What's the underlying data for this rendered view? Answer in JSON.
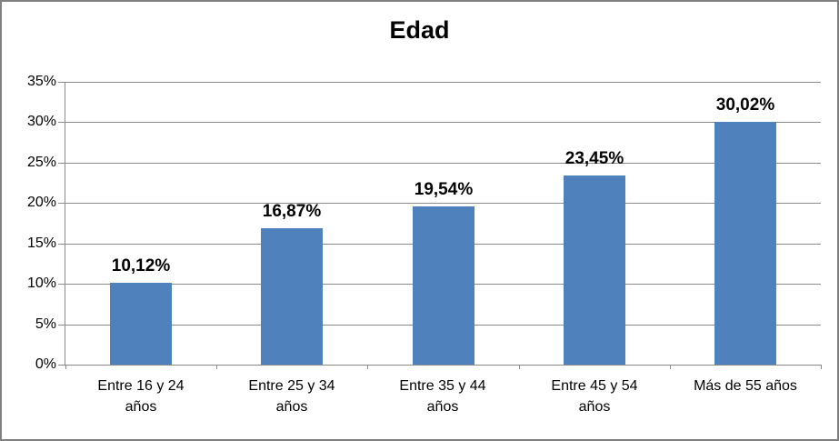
{
  "chart_data": {
    "type": "bar",
    "title": "Edad",
    "categories": [
      "Entre 16 y 24 años",
      "Entre 25 y 34 años",
      "Entre 35 y 44 años",
      "Entre 45 y 54 años",
      "Más de 55 años"
    ],
    "category_label_lines": [
      [
        "Entre 16 y 24",
        "años"
      ],
      [
        "Entre 25 y 34",
        "años"
      ],
      [
        "Entre 35 y 44",
        "años"
      ],
      [
        "Entre 45 y 54",
        "años"
      ],
      [
        "Más de 55 años"
      ]
    ],
    "values": [
      10.12,
      16.87,
      19.54,
      23.45,
      30.02
    ],
    "value_labels": [
      "10,12%",
      "16,87%",
      "19,54%",
      "23,45%",
      "30,02%"
    ],
    "xlabel": "",
    "ylabel": "",
    "ylim": [
      0,
      35
    ],
    "ytick_values": [
      0,
      5,
      10,
      15,
      20,
      25,
      30,
      35
    ],
    "ytick_labels": [
      "0%",
      "5%",
      "10%",
      "15%",
      "20%",
      "25%",
      "30%",
      "35%"
    ],
    "grid": true,
    "legend": false,
    "colors": {
      "bar": "#4f81bd",
      "gridline": "#8b8b8b",
      "axis": "#8b8b8b",
      "frame_border": "#808080",
      "text": "#000000"
    }
  }
}
